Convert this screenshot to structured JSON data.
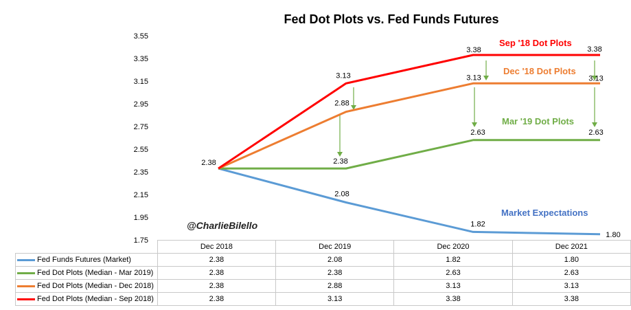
{
  "chart_data": {
    "type": "line",
    "title": "Fed Dot Plots vs. Fed Funds Futures",
    "categories": [
      "Dec 2018",
      "Dec 2019",
      "Dec 2020",
      "Dec 2021"
    ],
    "ylim": [
      1.75,
      3.55
    ],
    "yticks": [
      "3.55",
      "3.35",
      "3.15",
      "2.95",
      "2.75",
      "2.55",
      "2.35",
      "2.15",
      "1.95",
      "1.75"
    ],
    "series": [
      {
        "name": "Fed Funds Futures (Market)",
        "values": [
          2.38,
          2.08,
          1.82,
          1.8
        ],
        "labels": [
          "2.38",
          "2.08",
          "1.82",
          "1.80"
        ],
        "color": "#5b9bd5"
      },
      {
        "name": "Fed Dot Plots (Median - Mar 2019)",
        "values": [
          2.38,
          2.38,
          2.63,
          2.63
        ],
        "labels": [
          "2.38",
          "2.38",
          "2.63",
          "2.63"
        ],
        "color": "#70ad47"
      },
      {
        "name": "Fed Dot Plots (Median - Dec 2018)",
        "values": [
          2.38,
          2.88,
          3.13,
          3.13
        ],
        "labels": [
          "2.38",
          "2.88",
          "3.13",
          "3.13"
        ],
        "color": "#ed7d31"
      },
      {
        "name": "Fed Dot Plots (Median - Sep 2018)",
        "values": [
          2.38,
          3.13,
          3.38,
          3.38
        ],
        "labels": [
          "2.38",
          "3.13",
          "3.38",
          "3.38"
        ],
        "color": "#ff0000"
      }
    ],
    "annotations": [
      {
        "text": "Sep '18 Dot Plots",
        "color": "#ff0000"
      },
      {
        "text": "Dec '18 Dot Plots",
        "color": "#ed7d31"
      },
      {
        "text": "Mar '19 Dot Plots",
        "color": "#70ad47"
      },
      {
        "text": "Market Expectations",
        "color": "#4472c4"
      }
    ],
    "watermark": "@CharlieBilello",
    "grid": false,
    "legend": "data-table-bottom"
  }
}
